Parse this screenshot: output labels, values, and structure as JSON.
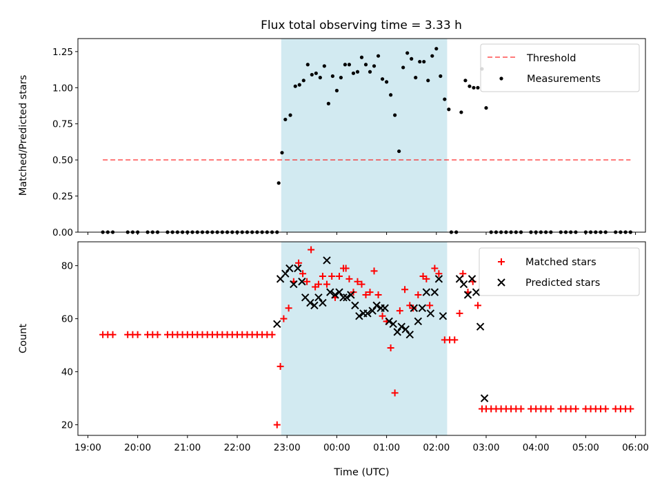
{
  "title": "Flux total observing time = 3.33 h",
  "colors": {
    "shade": "#add8e6",
    "threshold": "#ff0000",
    "measurement": "#000000",
    "matched": "#ff0000",
    "predicted": "#000000"
  },
  "x_ticks": [
    "19:00",
    "20:00",
    "21:00",
    "22:00",
    "23:00",
    "00:00",
    "01:00",
    "02:00",
    "03:00",
    "04:00",
    "05:00",
    "06:00"
  ],
  "xlabel": "Time (UTC)",
  "chart_data": [
    {
      "type": "scatter",
      "ylabel": "Matched/Predicted stars",
      "ylim": [
        0,
        1.34
      ],
      "yticks": [
        "0.00",
        "0.25",
        "0.50",
        "0.75",
        "1.00",
        "1.25"
      ],
      "xlim": [
        "18:48",
        "06:12"
      ],
      "shaded_interval": [
        "22:53",
        "02:13"
      ],
      "legend": {
        "placement": "top-right",
        "entries": [
          "Threshold",
          "Measurements"
        ]
      },
      "threshold": {
        "name": "Threshold",
        "style": "dashed",
        "y": 0.5,
        "x_range": [
          "19:18",
          "05:54"
        ]
      },
      "series": [
        {
          "name": "Measurements",
          "marker": "dot",
          "x": [
            "19:18",
            "19:24",
            "19:30",
            "19:48",
            "19:54",
            "20:00",
            "20:12",
            "20:18",
            "20:24",
            "20:36",
            "20:42",
            "20:48",
            "20:54",
            "21:00",
            "21:06",
            "21:12",
            "21:18",
            "21:24",
            "21:30",
            "21:36",
            "21:42",
            "21:48",
            "21:54",
            "22:00",
            "22:06",
            "22:12",
            "22:18",
            "22:24",
            "22:30",
            "22:36",
            "22:42",
            "22:48",
            "22:50",
            "22:54",
            "22:58",
            "23:04",
            "23:10",
            "23:15",
            "23:20",
            "23:25",
            "23:30",
            "23:35",
            "23:40",
            "23:45",
            "23:50",
            "23:55",
            "00:00",
            "00:05",
            "00:10",
            "00:15",
            "00:20",
            "00:25",
            "00:30",
            "00:35",
            "00:40",
            "00:45",
            "00:50",
            "00:55",
            "01:00",
            "01:05",
            "01:10",
            "01:15",
            "01:20",
            "01:25",
            "01:30",
            "01:35",
            "01:40",
            "01:45",
            "01:50",
            "01:55",
            "02:00",
            "02:05",
            "02:10",
            "02:15",
            "02:18",
            "02:24",
            "02:30",
            "02:35",
            "02:40",
            "02:45",
            "02:50",
            "02:55",
            "03:00",
            "03:06",
            "03:12",
            "03:18",
            "03:24",
            "03:30",
            "03:36",
            "03:42",
            "03:54",
            "04:00",
            "04:06",
            "04:12",
            "04:18",
            "04:30",
            "04:36",
            "04:42",
            "04:48",
            "05:00",
            "05:06",
            "05:12",
            "05:18",
            "05:24",
            "05:36",
            "05:42",
            "05:48",
            "05:54"
          ],
          "y": [
            0,
            0,
            0,
            0,
            0,
            0,
            0,
            0,
            0,
            0,
            0,
            0,
            0,
            0,
            0,
            0,
            0,
            0,
            0,
            0,
            0,
            0,
            0,
            0,
            0,
            0,
            0,
            0,
            0,
            0,
            0,
            0,
            0.34,
            0.55,
            0.78,
            0.81,
            1.01,
            1.02,
            1.05,
            1.16,
            1.09,
            1.1,
            1.07,
            1.15,
            0.89,
            1.08,
            0.98,
            1.07,
            1.16,
            1.16,
            1.1,
            1.11,
            1.21,
            1.16,
            1.11,
            1.15,
            1.22,
            1.06,
            1.04,
            0.95,
            0.81,
            0.56,
            1.14,
            1.24,
            1.2,
            1.07,
            1.18,
            1.18,
            1.05,
            1.22,
            1.27,
            1.08,
            0.92,
            0.85,
            0,
            0,
            0.83,
            1.05,
            1.01,
            1.0,
            1.0,
            1.13,
            0.86,
            0,
            0,
            0,
            0,
            0,
            0,
            0,
            0,
            0,
            0,
            0,
            0,
            0,
            0,
            0,
            0,
            0,
            0,
            0,
            0,
            0,
            0,
            0,
            0,
            0
          ]
        }
      ]
    },
    {
      "type": "scatter",
      "ylabel": "Count",
      "ylim": [
        16,
        89
      ],
      "yticks": [
        "20",
        "40",
        "60",
        "80"
      ],
      "xlim": [
        "18:48",
        "06:12"
      ],
      "shaded_interval": [
        "22:53",
        "02:13"
      ],
      "legend": {
        "placement": "top-right",
        "entries": [
          "Matched stars",
          "Predicted stars"
        ]
      },
      "series": [
        {
          "name": "Matched stars",
          "marker": "plus",
          "points": [
            [
              "19:18",
              54
            ],
            [
              "19:24",
              54
            ],
            [
              "19:30",
              54
            ],
            [
              "19:48",
              54
            ],
            [
              "19:54",
              54
            ],
            [
              "20:00",
              54
            ],
            [
              "20:12",
              54
            ],
            [
              "20:18",
              54
            ],
            [
              "20:24",
              54
            ],
            [
              "20:36",
              54
            ],
            [
              "20:42",
              54
            ],
            [
              "20:48",
              54
            ],
            [
              "20:54",
              54
            ],
            [
              "21:00",
              54
            ],
            [
              "21:06",
              54
            ],
            [
              "21:12",
              54
            ],
            [
              "21:18",
              54
            ],
            [
              "21:24",
              54
            ],
            [
              "21:30",
              54
            ],
            [
              "21:36",
              54
            ],
            [
              "21:42",
              54
            ],
            [
              "21:48",
              54
            ],
            [
              "21:54",
              54
            ],
            [
              "22:00",
              54
            ],
            [
              "22:06",
              54
            ],
            [
              "22:12",
              54
            ],
            [
              "22:18",
              54
            ],
            [
              "22:24",
              54
            ],
            [
              "22:30",
              54
            ],
            [
              "22:36",
              54
            ],
            [
              "22:42",
              54
            ],
            [
              "22:48",
              20
            ],
            [
              "22:52",
              42
            ],
            [
              "22:56",
              60
            ],
            [
              "23:02",
              64
            ],
            [
              "23:08",
              74
            ],
            [
              "23:14",
              81
            ],
            [
              "23:19",
              77
            ],
            [
              "23:24",
              74
            ],
            [
              "23:29",
              86
            ],
            [
              "23:34",
              72
            ],
            [
              "23:38",
              73
            ],
            [
              "23:43",
              76
            ],
            [
              "23:48",
              73
            ],
            [
              "23:54",
              76
            ],
            [
              "23:58",
              68
            ],
            [
              "00:03",
              76
            ],
            [
              "00:08",
              79
            ],
            [
              "00:11",
              79
            ],
            [
              "00:15",
              75
            ],
            [
              "00:20",
              70
            ],
            [
              "00:25",
              74
            ],
            [
              "00:30",
              73
            ],
            [
              "00:35",
              69
            ],
            [
              "00:40",
              70
            ],
            [
              "00:45",
              78
            ],
            [
              "00:50",
              69
            ],
            [
              "00:55",
              61
            ],
            [
              "01:00",
              59
            ],
            [
              "01:05",
              49
            ],
            [
              "01:10",
              32
            ],
            [
              "01:16",
              63
            ],
            [
              "01:22",
              71
            ],
            [
              "01:28",
              65
            ],
            [
              "01:32",
              64
            ],
            [
              "01:38",
              69
            ],
            [
              "01:44",
              76
            ],
            [
              "01:48",
              75
            ],
            [
              "01:52",
              65
            ],
            [
              "01:58",
              79
            ],
            [
              "02:03",
              77
            ],
            [
              "02:10",
              52
            ],
            [
              "02:16",
              52
            ],
            [
              "02:22",
              52
            ],
            [
              "02:28",
              62
            ],
            [
              "02:32",
              77
            ],
            [
              "02:38",
              70
            ],
            [
              "02:44",
              74
            ],
            [
              "02:50",
              65
            ],
            [
              "02:55",
              26
            ],
            [
              "03:00",
              26
            ],
            [
              "03:06",
              26
            ],
            [
              "03:12",
              26
            ],
            [
              "03:18",
              26
            ],
            [
              "03:24",
              26
            ],
            [
              "03:30",
              26
            ],
            [
              "03:36",
              26
            ],
            [
              "03:42",
              26
            ],
            [
              "03:54",
              26
            ],
            [
              "04:00",
              26
            ],
            [
              "04:06",
              26
            ],
            [
              "04:12",
              26
            ],
            [
              "04:18",
              26
            ],
            [
              "04:30",
              26
            ],
            [
              "04:36",
              26
            ],
            [
              "04:42",
              26
            ],
            [
              "04:48",
              26
            ],
            [
              "05:00",
              26
            ],
            [
              "05:06",
              26
            ],
            [
              "05:12",
              26
            ],
            [
              "05:18",
              26
            ],
            [
              "05:24",
              26
            ],
            [
              "05:36",
              26
            ],
            [
              "05:42",
              26
            ],
            [
              "05:48",
              26
            ],
            [
              "05:54",
              26
            ]
          ]
        },
        {
          "name": "Predicted stars",
          "marker": "x",
          "points": [
            [
              "22:48",
              58
            ],
            [
              "22:52",
              75
            ],
            [
              "22:58",
              77
            ],
            [
              "23:03",
              79
            ],
            [
              "23:08",
              73
            ],
            [
              "23:13",
              79
            ],
            [
              "23:18",
              74
            ],
            [
              "23:22",
              68
            ],
            [
              "23:28",
              66
            ],
            [
              "23:33",
              65
            ],
            [
              "23:38",
              68
            ],
            [
              "23:43",
              66
            ],
            [
              "23:48",
              82
            ],
            [
              "23:52",
              70
            ],
            [
              "23:58",
              69
            ],
            [
              "00:03",
              70
            ],
            [
              "00:08",
              68
            ],
            [
              "00:12",
              68
            ],
            [
              "00:17",
              69
            ],
            [
              "00:22",
              65
            ],
            [
              "00:27",
              61
            ],
            [
              "00:32",
              62
            ],
            [
              "00:37",
              62
            ],
            [
              "00:43",
              63
            ],
            [
              "00:48",
              65
            ],
            [
              "00:53",
              64
            ],
            [
              "00:58",
              64
            ],
            [
              "01:03",
              59
            ],
            [
              "01:08",
              58
            ],
            [
              "01:13",
              55
            ],
            [
              "01:18",
              57
            ],
            [
              "01:23",
              56
            ],
            [
              "01:28",
              54
            ],
            [
              "01:33",
              64
            ],
            [
              "01:38",
              59
            ],
            [
              "01:43",
              64
            ],
            [
              "01:48",
              70
            ],
            [
              "01:53",
              62
            ],
            [
              "01:58",
              70
            ],
            [
              "02:03",
              75
            ],
            [
              "02:08",
              61
            ],
            [
              "02:28",
              75
            ],
            [
              "02:33",
              73
            ],
            [
              "02:38",
              69
            ],
            [
              "02:43",
              75
            ],
            [
              "02:48",
              70
            ],
            [
              "02:53",
              57
            ],
            [
              "02:58",
              30
            ]
          ]
        }
      ]
    }
  ]
}
